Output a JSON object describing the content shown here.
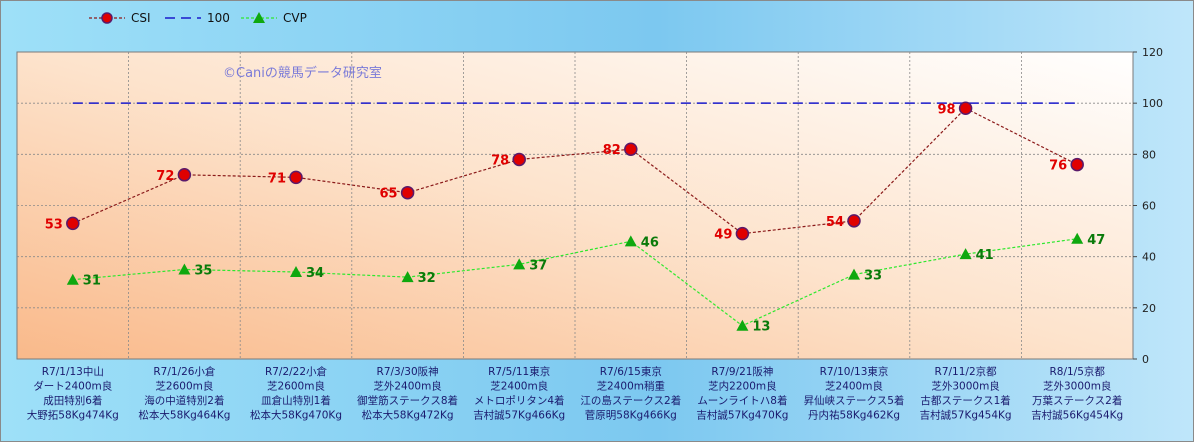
{
  "chart_data": {
    "type": "line",
    "title": "",
    "copyright": "©Caniの競馬データ研究室",
    "ylim": [
      0,
      120
    ],
    "yticks": [
      0,
      20,
      40,
      60,
      80,
      100,
      120
    ],
    "grid": true,
    "legend_position": "top-left",
    "categories": [
      [
        "R7/1/13中山",
        "ダート2400m良",
        "成田特別6着",
        "大野拓58Kg474Kg"
      ],
      [
        "R7/1/26小倉",
        "芝2600m良",
        "海の中道特別2着",
        "松本大58Kg464Kg"
      ],
      [
        "R7/2/22小倉",
        "芝2600m良",
        "皿倉山特別1着",
        "松本大58Kg470Kg"
      ],
      [
        "R7/3/30阪神",
        "芝外2400m良",
        "御堂筋ステークス8着",
        "松本大58Kg472Kg"
      ],
      [
        "R7/5/11東京",
        "芝2400m良",
        "メトロポリタン4着",
        "吉村誠57Kg466Kg"
      ],
      [
        "R7/6/15東京",
        "芝2400m稍重",
        "江の島ステークス2着",
        "菅原明58Kg466Kg"
      ],
      [
        "R7/9/21阪神",
        "芝内2200m良",
        "ムーンライトハ8着",
        "吉村誠57Kg470Kg"
      ],
      [
        "R7/10/13東京",
        "芝2400m良",
        "昇仙峡ステークス5着",
        "丹内祐58Kg462Kg"
      ],
      [
        "R7/11/2京都",
        "芝外3000m良",
        "古都ステークス1着",
        "吉村誠57Kg454Kg"
      ],
      [
        "R8/1/5京都",
        "芝外3000m良",
        "万葉ステークス2着",
        "吉村誠56Kg454Kg"
      ]
    ],
    "series": [
      {
        "name": "CSI",
        "values": [
          53,
          72,
          71,
          65,
          78,
          82,
          49,
          54,
          98,
          76
        ],
        "color": "#8b1a1a",
        "marker_color": "#e00000",
        "label_color": "#e00000"
      },
      {
        "name": "100",
        "values": [
          100,
          100,
          100,
          100,
          100,
          100,
          100,
          100,
          100,
          100
        ],
        "color": "#1a1acc"
      },
      {
        "name": "CVP",
        "values": [
          31,
          35,
          34,
          32,
          37,
          46,
          13,
          33,
          41,
          47
        ],
        "color": "#2ee82e",
        "marker_color": "#0fa80f",
        "label_color": "#0a7a0a"
      }
    ]
  }
}
